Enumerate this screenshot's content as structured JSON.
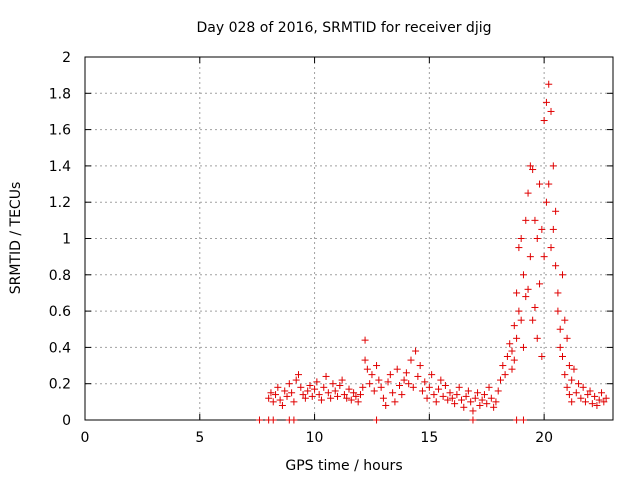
{
  "chart_data": {
    "type": "scatter",
    "title": "Day 028 of 2016, SRMTID for receiver djig",
    "xlabel": "GPS time / hours",
    "ylabel": "SRMTID / TECUs",
    "xlim": [
      0,
      23
    ],
    "ylim": [
      0,
      2
    ],
    "xticks": [
      0,
      5,
      10,
      15,
      20
    ],
    "yticks": [
      0,
      0.2,
      0.4,
      0.6,
      0.8,
      1,
      1.2,
      1.4,
      1.6,
      1.8,
      2
    ],
    "grid": true,
    "marker": "plus",
    "color": "#e00000",
    "series": [
      {
        "name": "SRMTID",
        "x": [
          7.6,
          8.0,
          8.2,
          8.9,
          9.1,
          12.7,
          16.9,
          18.8,
          19.1,
          8.0,
          8.1,
          8.2,
          8.3,
          8.4,
          8.5,
          8.6,
          8.7,
          8.8,
          8.9,
          9.0,
          9.1,
          9.2,
          9.3,
          9.4,
          9.5,
          9.6,
          9.7,
          9.8,
          9.9,
          10.0,
          10.1,
          10.2,
          10.3,
          10.4,
          10.5,
          10.6,
          10.7,
          10.8,
          10.9,
          11.0,
          11.1,
          11.2,
          11.3,
          11.4,
          11.5,
          11.6,
          11.7,
          11.8,
          11.9,
          12.0,
          12.1,
          12.2,
          12.2,
          12.3,
          12.4,
          12.5,
          12.6,
          12.7,
          12.8,
          12.9,
          13.0,
          13.1,
          13.2,
          13.3,
          13.4,
          13.5,
          13.6,
          13.7,
          13.8,
          13.9,
          14.0,
          14.1,
          14.2,
          14.3,
          14.4,
          14.5,
          14.6,
          14.7,
          14.8,
          14.9,
          15.0,
          15.1,
          15.2,
          15.3,
          15.4,
          15.5,
          15.6,
          15.7,
          15.8,
          15.9,
          16.0,
          16.1,
          16.2,
          16.3,
          16.4,
          16.5,
          16.6,
          16.7,
          16.8,
          16.9,
          17.0,
          17.1,
          17.2,
          17.3,
          17.4,
          17.5,
          17.6,
          17.7,
          17.8,
          17.9,
          18.0,
          18.1,
          18.2,
          18.3,
          18.4,
          18.5,
          18.6,
          18.6,
          18.7,
          18.7,
          18.8,
          18.8,
          18.9,
          18.9,
          19.0,
          19.0,
          19.1,
          19.1,
          19.2,
          19.2,
          19.3,
          19.3,
          19.4,
          19.4,
          19.5,
          19.5,
          19.6,
          19.6,
          19.7,
          19.7,
          19.8,
          19.8,
          19.9,
          19.9,
          20.0,
          20.0,
          20.1,
          20.1,
          20.2,
          20.2,
          20.3,
          20.3,
          20.4,
          20.4,
          20.5,
          20.5,
          20.6,
          20.6,
          20.7,
          20.7,
          20.8,
          20.8,
          20.9,
          20.9,
          21.0,
          21.0,
          21.1,
          21.1,
          21.2,
          21.2,
          21.3,
          21.4,
          21.5,
          21.6,
          21.7,
          21.8,
          21.9,
          22.0,
          22.1,
          22.2,
          22.3,
          22.4,
          22.5,
          22.6,
          22.7
        ],
        "y": [
          0,
          0,
          0,
          0,
          0,
          0,
          0,
          0,
          0,
          0.12,
          0.15,
          0.1,
          0.14,
          0.18,
          0.11,
          0.08,
          0.16,
          0.13,
          0.2,
          0.15,
          0.1,
          0.22,
          0.25,
          0.18,
          0.14,
          0.12,
          0.16,
          0.19,
          0.13,
          0.17,
          0.21,
          0.14,
          0.11,
          0.18,
          0.24,
          0.15,
          0.12,
          0.2,
          0.16,
          0.13,
          0.19,
          0.22,
          0.14,
          0.12,
          0.17,
          0.11,
          0.15,
          0.13,
          0.1,
          0.14,
          0.18,
          0.44,
          0.33,
          0.28,
          0.2,
          0.25,
          0.16,
          0.3,
          0.22,
          0.18,
          0.12,
          0.08,
          0.21,
          0.25,
          0.15,
          0.1,
          0.28,
          0.19,
          0.14,
          0.22,
          0.26,
          0.2,
          0.33,
          0.18,
          0.38,
          0.24,
          0.3,
          0.16,
          0.21,
          0.12,
          0.18,
          0.25,
          0.14,
          0.1,
          0.17,
          0.22,
          0.13,
          0.19,
          0.11,
          0.15,
          0.12,
          0.09,
          0.14,
          0.18,
          0.11,
          0.07,
          0.13,
          0.16,
          0.1,
          0.05,
          0.12,
          0.15,
          0.08,
          0.11,
          0.14,
          0.09,
          0.18,
          0.12,
          0.07,
          0.1,
          0.16,
          0.22,
          0.3,
          0.25,
          0.35,
          0.42,
          0.38,
          0.28,
          0.52,
          0.33,
          0.7,
          0.45,
          0.95,
          0.6,
          1.0,
          0.55,
          0.8,
          0.4,
          1.1,
          0.68,
          1.25,
          0.72,
          1.4,
          0.9,
          1.38,
          0.55,
          1.1,
          0.62,
          1.0,
          0.45,
          1.3,
          0.75,
          1.05,
          0.35,
          1.65,
          0.9,
          1.75,
          1.2,
          1.85,
          1.3,
          1.7,
          0.95,
          1.4,
          1.05,
          1.15,
          0.85,
          0.7,
          0.6,
          0.5,
          0.4,
          0.8,
          0.35,
          0.55,
          0.25,
          0.45,
          0.18,
          0.3,
          0.14,
          0.22,
          0.1,
          0.28,
          0.15,
          0.2,
          0.12,
          0.18,
          0.1,
          0.14,
          0.16,
          0.09,
          0.13,
          0.08,
          0.11,
          0.15,
          0.1,
          0.12
        ]
      }
    ]
  }
}
